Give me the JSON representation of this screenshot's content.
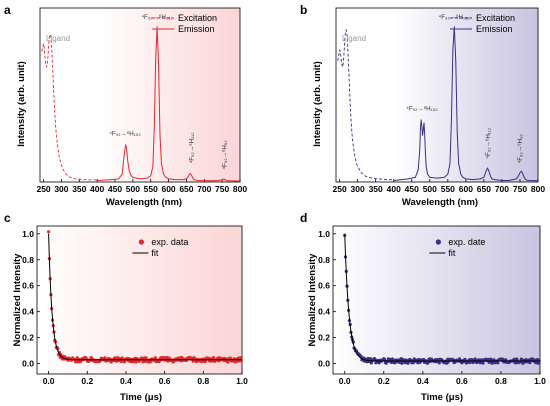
{
  "colors": {
    "red": "#e8262f",
    "purple": "#3b2f86",
    "grey": "#999999"
  },
  "chart_data": [
    {
      "type": "line",
      "panel": "a",
      "xlabel": "Wavelength (nm)",
      "ylabel": "Intensity (arb. unit)",
      "xlim": [
        240,
        800
      ],
      "ylim": [
        0,
        1.12
      ],
      "x_ticks": [
        "250",
        "300",
        "350",
        "400",
        "450",
        "500",
        "550",
        "600",
        "650",
        "700",
        "750",
        "800"
      ],
      "legend": {
        "position": "top-right",
        "entries": [
          "Excitation",
          "Emission"
        ]
      },
      "color": "#e8262f",
      "ligand_label": "Ligand",
      "series": [
        {
          "name": "Excitation",
          "style": "dashed",
          "x": [
            245,
            248,
            250,
            252,
            254,
            256,
            258,
            260,
            262,
            264,
            266,
            268,
            270,
            272,
            274,
            276,
            278,
            280,
            282,
            284,
            286,
            288,
            290,
            292,
            294,
            296,
            298,
            300,
            305,
            310,
            315,
            320,
            325,
            330,
            340,
            350,
            360,
            370,
            380,
            390,
            400
          ],
          "y": [
            0.84,
            0.87,
            0.89,
            0.86,
            0.8,
            0.76,
            0.74,
            0.75,
            0.8,
            0.87,
            0.93,
            0.95,
            0.94,
            0.89,
            0.8,
            0.7,
            0.6,
            0.5,
            0.42,
            0.35,
            0.3,
            0.26,
            0.22,
            0.19,
            0.16,
            0.14,
            0.12,
            0.11,
            0.08,
            0.06,
            0.045,
            0.035,
            0.03,
            0.025,
            0.02,
            0.018,
            0.016,
            0.015,
            0.014,
            0.014,
            0.013
          ]
        },
        {
          "name": "Emission",
          "style": "solid",
          "x": [
            400,
            440,
            460,
            470,
            474,
            478,
            480,
            482,
            486,
            490,
            495,
            500,
            520,
            540,
            550,
            556,
            560,
            564,
            568,
            572,
            576,
            580,
            586,
            592,
            600,
            620,
            640,
            650,
            655,
            660,
            664,
            668,
            672,
            680,
            700,
            720,
            740,
            750,
            754,
            758,
            762,
            770,
            800
          ],
          "y": [
            0.01,
            0.015,
            0.02,
            0.05,
            0.14,
            0.21,
            0.24,
            0.22,
            0.13,
            0.07,
            0.04,
            0.03,
            0.02,
            0.025,
            0.04,
            0.1,
            0.35,
            0.8,
            1.0,
            0.75,
            0.3,
            0.12,
            0.05,
            0.03,
            0.02,
            0.015,
            0.015,
            0.02,
            0.035,
            0.055,
            0.045,
            0.025,
            0.015,
            0.01,
            0.008,
            0.008,
            0.01,
            0.015,
            0.02,
            0.016,
            0.01,
            0.008,
            0.006
          ]
        }
      ],
      "annotations": [
        {
          "text": "⁴F₉₂→⁶H₁₅₂",
          "x": 478,
          "y": 0.3
        },
        {
          "text": "⁴F₉₂→⁶H₁₃₂",
          "x": 568,
          "y": 1.05
        },
        {
          "text": "⁴F₉₂→⁶H₁₁₂",
          "x": 664,
          "y": 0.12
        },
        {
          "text": "⁴F₉₂→⁶H₉₂",
          "x": 756,
          "y": 0.08
        }
      ]
    },
    {
      "type": "line",
      "panel": "b",
      "xlabel": "Wavelength (nm)",
      "ylabel": "Intensity (arb. unit)",
      "xlim": [
        240,
        800
      ],
      "ylim": [
        0,
        1.12
      ],
      "x_ticks": [
        "250",
        "300",
        "350",
        "400",
        "450",
        "500",
        "550",
        "600",
        "650",
        "700",
        "750",
        "800"
      ],
      "legend": {
        "position": "top-right",
        "entries": [
          "Excitation",
          "Emission"
        ]
      },
      "color": "#3b2f86",
      "ligand_label": "Ligand",
      "series": [
        {
          "name": "Excitation",
          "style": "dashed",
          "x": [
            245,
            248,
            250,
            252,
            254,
            256,
            258,
            260,
            262,
            264,
            266,
            268,
            270,
            272,
            274,
            276,
            278,
            280,
            282,
            284,
            286,
            288,
            290,
            292,
            294,
            296,
            298,
            300,
            305,
            310,
            315,
            320,
            325,
            330,
            340,
            350,
            360,
            370,
            380,
            390,
            400
          ],
          "y": [
            0.78,
            0.82,
            0.85,
            0.84,
            0.8,
            0.76,
            0.74,
            0.76,
            0.82,
            0.9,
            0.96,
            0.98,
            0.96,
            0.9,
            0.8,
            0.68,
            0.57,
            0.47,
            0.39,
            0.32,
            0.27,
            0.23,
            0.2,
            0.17,
            0.15,
            0.13,
            0.11,
            0.1,
            0.08,
            0.06,
            0.05,
            0.04,
            0.035,
            0.03,
            0.025,
            0.022,
            0.02,
            0.018,
            0.016,
            0.015,
            0.014
          ]
        },
        {
          "name": "Emission",
          "style": "solid",
          "x": [
            400,
            440,
            460,
            468,
            472,
            474,
            476,
            478,
            480,
            482,
            484,
            486,
            488,
            490,
            494,
            500,
            520,
            540,
            550,
            556,
            560,
            564,
            568,
            572,
            576,
            580,
            586,
            592,
            600,
            620,
            640,
            650,
            656,
            660,
            664,
            668,
            672,
            680,
            700,
            720,
            740,
            746,
            750,
            754,
            758,
            764,
            770,
            800
          ],
          "y": [
            0.01,
            0.02,
            0.03,
            0.08,
            0.2,
            0.34,
            0.4,
            0.36,
            0.3,
            0.34,
            0.38,
            0.3,
            0.18,
            0.1,
            0.05,
            0.03,
            0.025,
            0.03,
            0.05,
            0.12,
            0.4,
            0.85,
            1.0,
            0.78,
            0.32,
            0.12,
            0.05,
            0.03,
            0.02,
            0.015,
            0.02,
            0.03,
            0.07,
            0.09,
            0.07,
            0.04,
            0.02,
            0.015,
            0.01,
            0.01,
            0.02,
            0.04,
            0.06,
            0.07,
            0.05,
            0.02,
            0.01,
            0.008
          ]
        }
      ],
      "annotations": [
        {
          "text": "⁴F₉₂→⁶H₁₅₂",
          "x": 478,
          "y": 0.46
        },
        {
          "text": "⁴F₉₂→⁶H₁₃₂",
          "x": 568,
          "y": 1.05
        },
        {
          "text": "⁴F₉₂→⁶H₁₁₂",
          "x": 662,
          "y": 0.15
        },
        {
          "text": "⁴F₉₂→⁶H₉₂",
          "x": 750,
          "y": 0.12
        }
      ]
    },
    {
      "type": "scatter",
      "panel": "c",
      "xlabel": "Time (μs)",
      "ylabel": "Normalized Intensity",
      "xlim": [
        -0.06,
        1.0
      ],
      "ylim": [
        -0.08,
        1.06
      ],
      "x_ticks": [
        "0.0",
        "0.2",
        "0.4",
        "0.6",
        "0.8",
        "1.0"
      ],
      "y_ticks": [
        "0.0",
        "0.2",
        "0.4",
        "0.6",
        "0.8",
        "1.0"
      ],
      "legend": {
        "position": "top-right",
        "entries": [
          "exp. data",
          "fit"
        ]
      },
      "color": "#e8262f",
      "series": [
        {
          "name": "exp. data",
          "style": "markers",
          "baseline": 0.03,
          "tau": 0.018
        },
        {
          "name": "fit",
          "style": "line",
          "x0": 0.0,
          "amplitude": 0.97,
          "tau": 0.018,
          "baseline": 0.03
        }
      ]
    },
    {
      "type": "scatter",
      "panel": "d",
      "xlabel": "Time (μs)",
      "ylabel": "Normalized Intensity",
      "xlim": [
        -0.06,
        1.0
      ],
      "ylim": [
        -0.08,
        1.06
      ],
      "x_ticks": [
        "0.0",
        "0.2",
        "0.4",
        "0.6",
        "0.8",
        "1.0"
      ],
      "y_ticks": [
        "0.0",
        "0.2",
        "0.4",
        "0.6",
        "0.8",
        "1.0"
      ],
      "legend": {
        "position": "top-right",
        "entries": [
          "exp. date",
          "fit"
        ]
      },
      "color": "#3b2f86",
      "series": [
        {
          "name": "exp. date",
          "style": "markers",
          "baseline": 0.02,
          "tau": 0.022
        },
        {
          "name": "fit",
          "style": "line",
          "x0": 0.0,
          "amplitude": 0.98,
          "tau": 0.022,
          "baseline": 0.02
        }
      ]
    }
  ]
}
